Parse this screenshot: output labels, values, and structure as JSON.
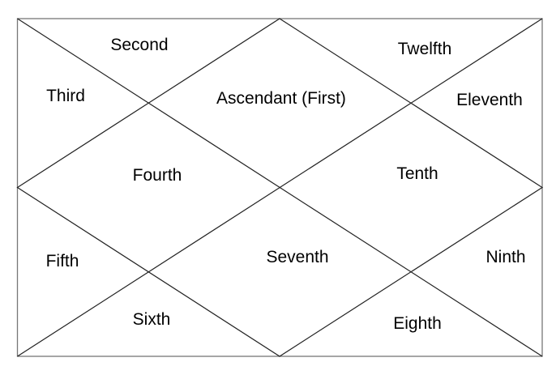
{
  "houses": [
    {
      "id": "first",
      "label": "Ascendant (First)"
    },
    {
      "id": "second",
      "label": "Second"
    },
    {
      "id": "third",
      "label": "Third"
    },
    {
      "id": "fourth",
      "label": "Fourth"
    },
    {
      "id": "fifth",
      "label": "Fifth"
    },
    {
      "id": "sixth",
      "label": "Sixth"
    },
    {
      "id": "seventh",
      "label": "Seventh"
    },
    {
      "id": "eighth",
      "label": "Eighth"
    },
    {
      "id": "ninth",
      "label": "Ninth"
    },
    {
      "id": "tenth",
      "label": "Tenth"
    },
    {
      "id": "eleventh",
      "label": "Eleventh"
    },
    {
      "id": "twelfth",
      "label": "Twelfth"
    }
  ],
  "colors": {
    "border": "#777777",
    "lines": "#222222",
    "text": "#000000"
  }
}
